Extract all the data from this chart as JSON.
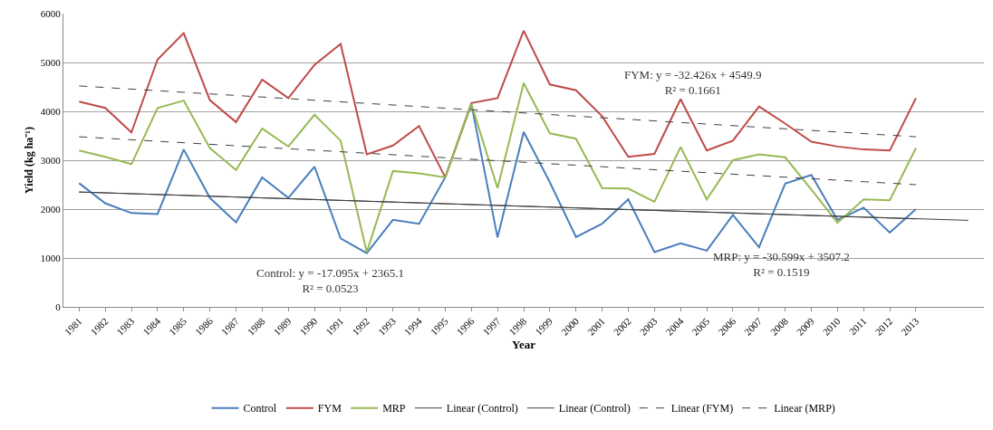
{
  "chart_data": {
    "type": "line",
    "xlabel": "Year",
    "ylabel": "Yield (kg ha⁻¹)",
    "x": [
      1981,
      1982,
      1983,
      1984,
      1985,
      1986,
      1987,
      1988,
      1989,
      1990,
      1991,
      1992,
      1993,
      1994,
      1995,
      1996,
      1997,
      1998,
      1999,
      2000,
      2001,
      2002,
      2003,
      2004,
      2005,
      2006,
      2007,
      2008,
      2009,
      2010,
      2011,
      2012,
      2013
    ],
    "series": [
      {
        "name": "Control",
        "color": "#4a7ebb",
        "values": [
          2530,
          2120,
          1920,
          1900,
          3220,
          2230,
          1730,
          2650,
          2230,
          2870,
          1400,
          1100,
          1780,
          1700,
          2650,
          4150,
          1420,
          3580,
          2550,
          1430,
          1700,
          2200,
          1120,
          1300,
          1150,
          1880,
          1220,
          2520,
          2700,
          1780,
          2030,
          1520,
          2000
        ]
      },
      {
        "name": "FYM",
        "color": "#be4b48",
        "values": [
          4200,
          4070,
          3570,
          5060,
          5600,
          4230,
          3780,
          4650,
          4270,
          4950,
          5380,
          3120,
          3300,
          3700,
          2650,
          4170,
          4270,
          5650,
          4550,
          4430,
          3900,
          3070,
          3130,
          4250,
          3200,
          3400,
          4100,
          3750,
          3380,
          3280,
          3220,
          3200,
          4270
        ]
      },
      {
        "name": "MRP",
        "color": "#98b954",
        "values": [
          3200,
          3070,
          2920,
          4070,
          4220,
          3250,
          2800,
          3650,
          3280,
          3930,
          3400,
          1120,
          2780,
          2730,
          2650,
          4150,
          2430,
          4580,
          3550,
          3440,
          2430,
          2420,
          2150,
          3270,
          2200,
          3000,
          3120,
          3060,
          2400,
          1720,
          2200,
          2180,
          3250
        ]
      },
      {
        "name": "Linear (Control)",
        "type": "line",
        "color": "#404040",
        "line_style": "solid",
        "x": [
          1981,
          2013
        ],
        "values": [
          2350,
          1800
        ]
      },
      {
        "name": "Linear (Control)",
        "type": "line",
        "color": "#404040",
        "line_style": "solid",
        "x": [
          1981,
          2015
        ],
        "values": [
          2350,
          1770
        ]
      },
      {
        "name": "Linear (FYM)",
        "type": "line",
        "color": "#404040",
        "line_style": "dashed",
        "x": [
          1981,
          2013
        ],
        "values": [
          4520,
          3480
        ]
      },
      {
        "name": "Linear (MRP)",
        "type": "line",
        "color": "#404040",
        "line_style": "dashed",
        "x": [
          1981,
          2013
        ],
        "values": [
          3480,
          2500
        ]
      }
    ],
    "xlim": [
      1980.4,
      2015.6
    ],
    "xticks": [
      1981,
      1982,
      1983,
      1984,
      1985,
      1986,
      1987,
      1988,
      1989,
      1990,
      1991,
      1992,
      1993,
      1994,
      1995,
      1996,
      1997,
      1998,
      1999,
      2000,
      2001,
      2002,
      2003,
      2004,
      2005,
      2006,
      2007,
      2008,
      2009,
      2010,
      2011,
      2012,
      2013
    ],
    "ylim": [
      0,
      6000
    ],
    "yticks": [
      0,
      1000,
      2000,
      3000,
      4000,
      5000,
      6000
    ],
    "grid": "y",
    "legend": "bottom",
    "marker": "none",
    "annotations": [
      "Control: y = -17.095x + 2365.1\nR² = 0.0523",
      "FYM: y = -32.426x + 4549.9\nR² = 0.1661",
      "MRP: y = -30.599x + 3507.2\nR² = 0.1519"
    ]
  }
}
